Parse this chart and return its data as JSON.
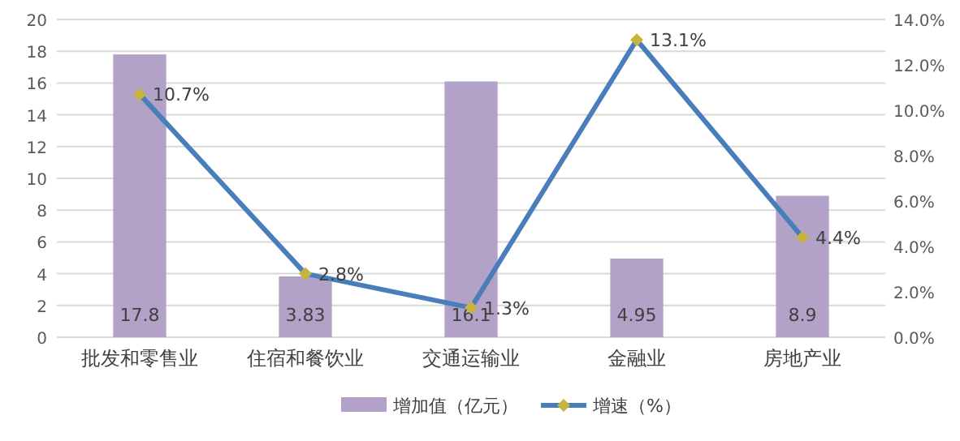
{
  "chart_data": {
    "type": "bar",
    "categories": [
      "批发和零售业",
      "住宿和餐饮业",
      "交通运输业",
      "金融业",
      "房地产业"
    ],
    "series": [
      {
        "name": "增加值（亿元）",
        "color": "#b3a2c7",
        "values": [
          17.8,
          3.83,
          16.1,
          4.95,
          8.9
        ],
        "value_labels": [
          "17.8",
          "3.83",
          "16.1",
          "4.95",
          "8.9"
        ]
      },
      {
        "name": "增速（%）",
        "type": "line",
        "axis": "y2",
        "color": "#4a7ebb",
        "marker": "diamond",
        "values": [
          10.7,
          2.8,
          1.3,
          13.1,
          4.4
        ],
        "value_labels": [
          "10.7%",
          "2.8%",
          "1.3%",
          "13.1%",
          "4.4%"
        ]
      }
    ],
    "ylim": [
      0,
      20
    ],
    "yticks": [
      0,
      2,
      4,
      6,
      8,
      10,
      12,
      14,
      16,
      18,
      20
    ],
    "y2lim": [
      0,
      14
    ],
    "y2ticks": [
      {
        "value": 0,
        "label": "0.0%"
      },
      {
        "value": 2,
        "label": "2.0%"
      },
      {
        "value": 4,
        "label": "4.0%"
      },
      {
        "value": 6,
        "label": "6.0%"
      },
      {
        "value": 8,
        "label": "8.0%"
      },
      {
        "value": 10,
        "label": "10.0%"
      },
      {
        "value": 12,
        "label": "12.0%"
      },
      {
        "value": 14,
        "label": "14.0%"
      }
    ],
    "grid": "y",
    "legend": "bottom"
  }
}
